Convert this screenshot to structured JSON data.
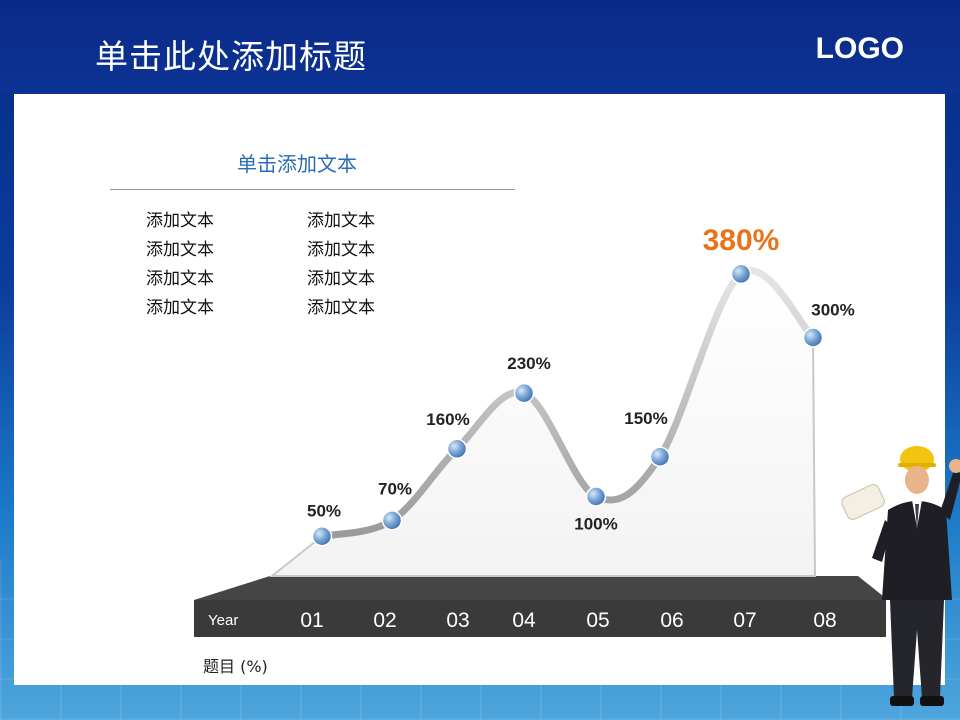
{
  "slide": {
    "title": "单击此处添加标题",
    "logo": "LOGO"
  },
  "text_block": {
    "heading": "单击添加文本",
    "rows": [
      [
        "添加文本",
        "添加文本"
      ],
      [
        "添加文本",
        "添加文本"
      ],
      [
        "添加文本",
        "添加文本"
      ],
      [
        "添加文本",
        "添加文本"
      ]
    ]
  },
  "footer_note": "题目  (%)",
  "colors": {
    "header": "#0c3394",
    "highlight": "#e8731a",
    "node": "#7aa6d8",
    "base": "#3a3a3a"
  },
  "chart_data": {
    "type": "line",
    "x_axis_name": "Year",
    "categories": [
      "01",
      "02",
      "03",
      "04",
      "05",
      "06",
      "07",
      "08"
    ],
    "values": [
      50,
      70,
      160,
      230,
      100,
      150,
      380,
      300
    ],
    "labels": [
      "50%",
      "70%",
      "160%",
      "230%",
      "100%",
      "150%",
      "380%",
      "300%"
    ],
    "highlight_index": 6,
    "ylim": [
      0,
      400
    ]
  },
  "figure": {
    "icon": "construction-worker-with-blueprints"
  }
}
